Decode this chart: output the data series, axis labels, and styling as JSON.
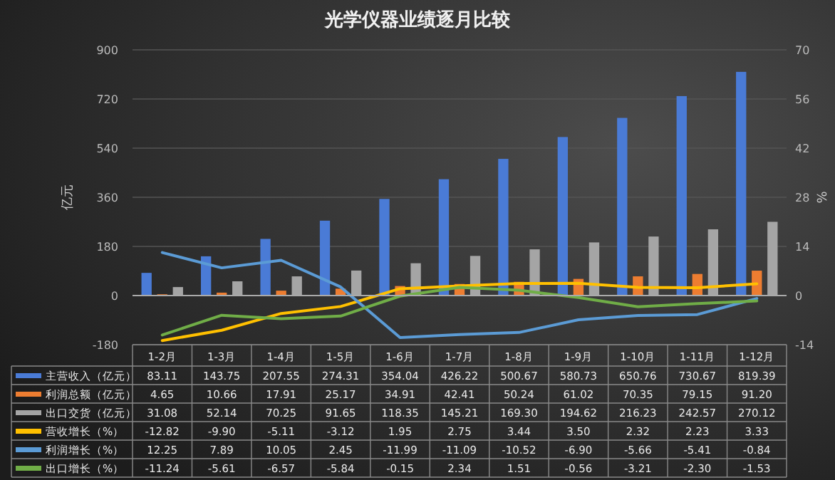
{
  "chart_data": {
    "type": "bar",
    "title": "光学仪器业绩逐月比较",
    "ylabel": "亿元",
    "y2label": "%",
    "categories": [
      "1-2月",
      "1-3月",
      "1-4月",
      "1-5月",
      "1-6月",
      "1-7月",
      "1-8月",
      "1-9月",
      "1-10月",
      "1-11月",
      "1-12月"
    ],
    "series": [
      {
        "name": "主营收入（亿元）",
        "color": "#4a7bd6",
        "values": [
          83.11,
          143.75,
          207.55,
          274.31,
          354.04,
          426.22,
          500.67,
          580.73,
          650.76,
          730.67,
          819.39
        ],
        "value_labels": [
          "83.11",
          "143.75",
          "207.55",
          "274.31",
          "354.04",
          "426.22",
          "500.67",
          "580.73",
          "650.76",
          "730.67",
          "819.39"
        ]
      },
      {
        "name": "利润总额（亿元）",
        "color": "#ed7d31",
        "values": [
          4.65,
          10.66,
          17.91,
          25.17,
          34.91,
          42.41,
          50.24,
          61.02,
          70.35,
          79.15,
          91.2
        ],
        "value_labels": [
          "4.65",
          "10.66",
          "17.91",
          "25.17",
          "34.91",
          "42.41",
          "50.24",
          "61.02",
          "70.35",
          "79.15",
          "91.20"
        ]
      },
      {
        "name": "出口交货（亿元）",
        "color": "#a5a5a5",
        "values": [
          31.08,
          52.14,
          70.25,
          91.65,
          118.35,
          145.21,
          169.3,
          194.62,
          216.23,
          242.57,
          270.12
        ],
        "value_labels": [
          "31.08",
          "52.14",
          "70.25",
          "91.65",
          "118.35",
          "145.21",
          "169.30",
          "194.62",
          "216.23",
          "242.57",
          "270.12"
        ]
      },
      {
        "name": "营收增长（%）",
        "color": "#ffc000",
        "type": "line",
        "axis": "y2",
        "values": [
          -12.82,
          -9.9,
          -5.11,
          -3.12,
          1.95,
          2.75,
          3.44,
          3.5,
          2.32,
          2.23,
          3.33
        ],
        "value_labels": [
          "-12.82",
          "-9.90",
          "-5.11",
          "-3.12",
          "1.95",
          "2.75",
          "3.44",
          "3.50",
          "2.32",
          "2.23",
          "3.33"
        ]
      },
      {
        "name": "利润增长（%）",
        "color": "#5b9bd5",
        "type": "line",
        "axis": "y2",
        "values": [
          12.25,
          7.89,
          10.05,
          2.45,
          -11.99,
          -11.09,
          -10.52,
          -6.9,
          -5.66,
          -5.41,
          -0.84
        ],
        "value_labels": [
          "12.25",
          "7.89",
          "10.05",
          "2.45",
          "-11.99",
          "-11.09",
          "-10.52",
          "-6.90",
          "-5.66",
          "-5.41",
          "-0.84"
        ]
      },
      {
        "name": "出口增长（%）",
        "color": "#70ad47",
        "type": "line",
        "axis": "y2",
        "values": [
          -11.24,
          -5.61,
          -6.57,
          -5.84,
          -0.15,
          2.34,
          1.51,
          -0.56,
          -3.21,
          -2.3,
          -1.53
        ],
        "value_labels": [
          "-11.24",
          "-5.61",
          "-6.57",
          "-5.84",
          "-0.15",
          "2.34",
          "1.51",
          "-0.56",
          "-3.21",
          "-2.30",
          "-1.53"
        ]
      }
    ],
    "ylim": [
      -180,
      900
    ],
    "yticks": [
      -180,
      0,
      180,
      360,
      540,
      720,
      900
    ],
    "y2lim": [
      -14,
      70
    ],
    "y2ticks": [
      -14,
      0,
      14,
      28,
      42,
      56,
      70
    ],
    "grid": "y",
    "legend": "bottom",
    "marker": "none",
    "line_style": "solid"
  }
}
